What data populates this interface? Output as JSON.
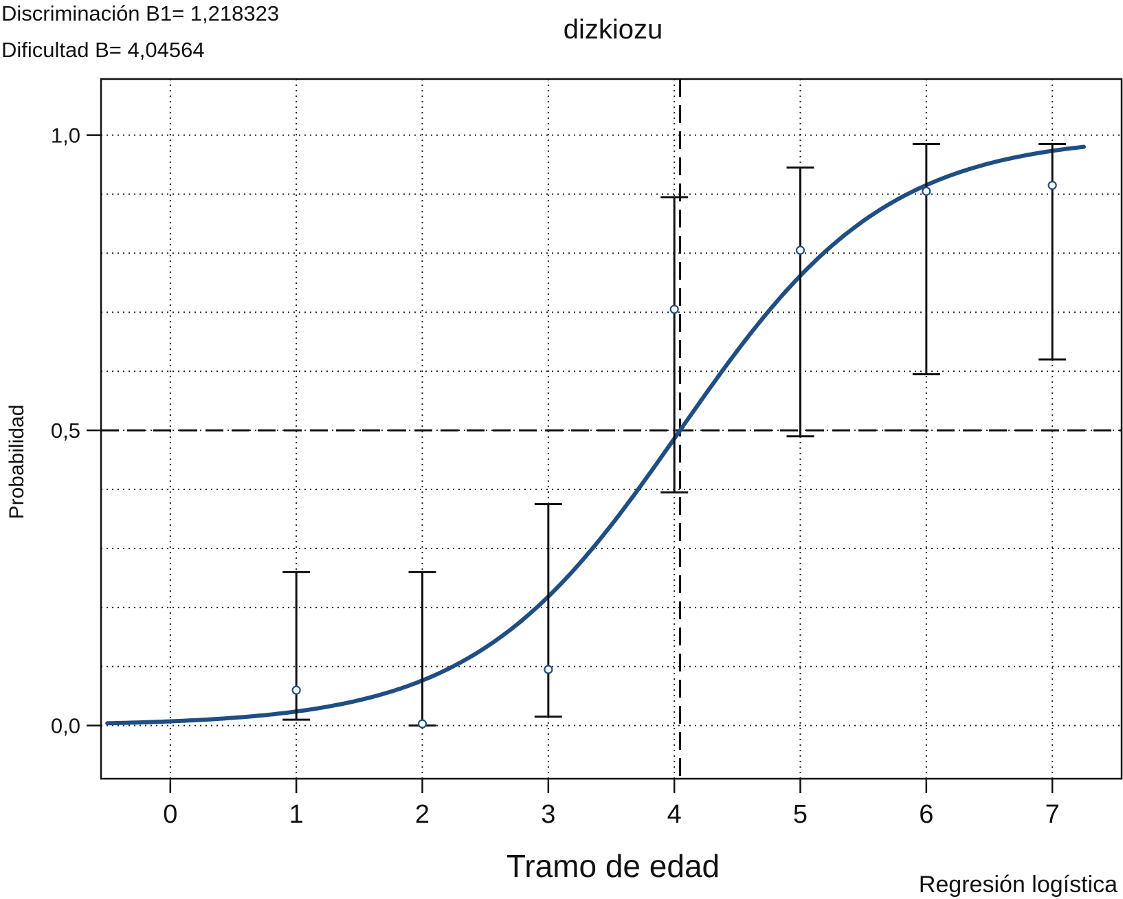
{
  "header": {
    "discrimination": "Discriminación B1= 1,218323",
    "difficulty": "Dificultad B= 4,04564"
  },
  "footer": {
    "method": "Regresión logística"
  },
  "chart_data": {
    "type": "scatter",
    "title": "dizkiozu",
    "xlabel": "Tramo de edad",
    "ylabel": "Probabilidad",
    "xlim": [
      -0.55,
      7.55
    ],
    "ylim": [
      -0.09,
      1.095
    ],
    "x_ticks": [
      0,
      1,
      2,
      3,
      4,
      5,
      6,
      7
    ],
    "x_tick_labels": [
      "0",
      "1",
      "2",
      "3",
      "4",
      "5",
      "6",
      "7"
    ],
    "y_ticks": [
      0,
      0.5,
      1
    ],
    "y_tick_labels": [
      "0,0",
      "0,5",
      "1,0"
    ],
    "y_minor_grid_step": 0.1,
    "grid": true,
    "series": [
      {
        "x": [
          1,
          2,
          3,
          4,
          5,
          6,
          7
        ],
        "y": [
          0.06,
          0.003,
          0.095,
          0.705,
          0.805,
          0.905,
          0.915
        ],
        "lower": [
          0.01,
          0.0,
          0.015,
          0.395,
          0.49,
          0.595,
          0.62
        ],
        "upper": [
          0.26,
          0.26,
          0.375,
          0.895,
          0.945,
          0.985,
          0.985
        ]
      }
    ],
    "curve": {
      "type": "logistic",
      "discrimination": 1.218323,
      "difficulty": 4.04564,
      "x_range": [
        -0.5,
        7.25
      ],
      "color": "#1f4e84"
    },
    "reference_lines": {
      "y": 0.5,
      "x": 4.04564
    },
    "marker_color": "#1f4e84"
  }
}
